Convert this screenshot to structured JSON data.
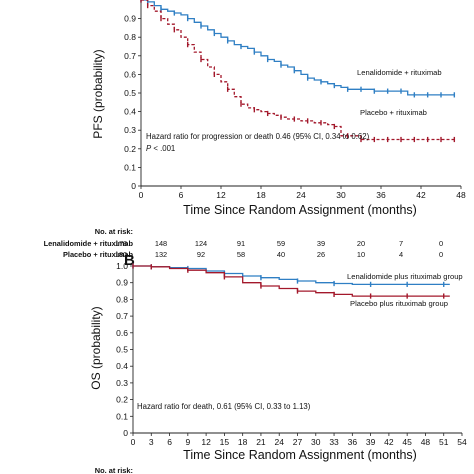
{
  "chart_data": [
    {
      "type": "line",
      "panel": "",
      "title": "",
      "xlabel": "Time Since Random Assignment (months)",
      "ylabel": "PFS (probability)",
      "xlim": [
        0,
        48
      ],
      "ylim": [
        0,
        1.0
      ],
      "x_ticks": [
        "0",
        "6",
        "12",
        "18",
        "24",
        "30",
        "36",
        "42",
        "48"
      ],
      "y_ticks": [
        "0",
        "0.1",
        "0.2",
        "0.3",
        "0.4",
        "0.5",
        "0.6",
        "0.7",
        "0.8",
        "0.9"
      ],
      "annotation_line1": "Hazard ratio for progression or death 0.46 (95% CI, 0.34 to 0.62)",
      "annotation_p_label": "P",
      "annotation_p_value": " < .001",
      "series": [
        {
          "name": "Lenalidomide + rituximab",
          "color": "#2f7fc4",
          "style": "solid",
          "x": [
            0,
            1,
            2,
            3,
            4,
            5,
            6,
            7,
            8,
            9,
            10,
            11,
            12,
            13,
            14,
            15,
            16,
            17,
            18,
            19,
            20,
            21,
            22,
            23,
            24,
            25,
            26,
            27,
            28,
            29,
            30,
            31,
            32,
            33,
            34,
            35,
            36,
            37,
            38,
            39,
            40,
            41,
            42,
            43,
            44,
            45,
            46,
            47
          ],
          "y": [
            1.0,
            0.99,
            0.97,
            0.95,
            0.94,
            0.93,
            0.92,
            0.9,
            0.88,
            0.86,
            0.84,
            0.82,
            0.8,
            0.78,
            0.76,
            0.75,
            0.74,
            0.72,
            0.7,
            0.68,
            0.67,
            0.65,
            0.64,
            0.62,
            0.6,
            0.58,
            0.57,
            0.56,
            0.55,
            0.54,
            0.53,
            0.52,
            0.52,
            0.52,
            0.52,
            0.51,
            0.51,
            0.51,
            0.51,
            0.51,
            0.49,
            0.49,
            0.49,
            0.49,
            0.49,
            0.49,
            0.49,
            0.49
          ]
        },
        {
          "name": "Placebo + rituximab",
          "color": "#a3182b",
          "style": "dashed",
          "x": [
            0,
            1,
            2,
            3,
            4,
            5,
            6,
            7,
            8,
            9,
            10,
            11,
            12,
            13,
            14,
            15,
            16,
            17,
            18,
            19,
            20,
            21,
            22,
            23,
            24,
            25,
            26,
            27,
            28,
            29,
            30,
            31,
            32,
            33,
            34,
            35,
            36,
            37,
            38,
            39,
            40,
            41,
            42,
            43,
            44,
            45,
            46,
            47
          ],
          "y": [
            1.0,
            0.97,
            0.94,
            0.9,
            0.87,
            0.84,
            0.8,
            0.76,
            0.72,
            0.68,
            0.64,
            0.6,
            0.56,
            0.52,
            0.48,
            0.44,
            0.42,
            0.41,
            0.4,
            0.39,
            0.38,
            0.37,
            0.36,
            0.36,
            0.35,
            0.35,
            0.34,
            0.34,
            0.33,
            0.32,
            0.27,
            0.27,
            0.27,
            0.25,
            0.25,
            0.25,
            0.25,
            0.25,
            0.25,
            0.25,
            0.25,
            0.25,
            0.25,
            0.25,
            0.25,
            0.25,
            0.25,
            0.25
          ]
        }
      ],
      "risk_table": {
        "header": "No. at risk:",
        "rows": [
          {
            "label": "Lenalidomide + rituximab",
            "values": [
              "178",
              "148",
              "124",
              "91",
              "59",
              "39",
              "20",
              "7",
              "0"
            ]
          },
          {
            "label": "Placebo + rituximab",
            "values": [
              "180",
              "132",
              "92",
              "58",
              "40",
              "26",
              "10",
              "4",
              "0"
            ]
          }
        ]
      }
    },
    {
      "type": "line",
      "panel": "B",
      "title": "",
      "xlabel": "Time Since Random Assignment (months)",
      "ylabel": "OS (probability)",
      "xlim": [
        0,
        54
      ],
      "ylim": [
        0,
        1.0
      ],
      "x_ticks": [
        "0",
        "3",
        "6",
        "9",
        "12",
        "15",
        "18",
        "21",
        "24",
        "27",
        "30",
        "33",
        "36",
        "39",
        "42",
        "45",
        "48",
        "51",
        "54"
      ],
      "y_ticks": [
        "0",
        "0.1",
        "0.2",
        "0.3",
        "0.4",
        "0.5",
        "0.6",
        "0.7",
        "0.8",
        "0.9",
        "1.0"
      ],
      "annotation_line1": "Hazard ratio for death, 0.61 (95% CI, 0.33 to 1.13)",
      "series": [
        {
          "name": "Lenalidomide plus rituximab group",
          "color": "#2f7fc4",
          "style": "solid",
          "x": [
            0,
            3,
            6,
            9,
            12,
            15,
            18,
            21,
            24,
            27,
            30,
            33,
            36,
            39,
            42,
            45,
            48,
            51,
            52
          ],
          "y": [
            1.0,
            0.995,
            0.99,
            0.985,
            0.97,
            0.955,
            0.94,
            0.93,
            0.92,
            0.91,
            0.9,
            0.895,
            0.89,
            0.89,
            0.89,
            0.89,
            0.89,
            0.89,
            0.89
          ]
        },
        {
          "name": "Placebo plus rituximab group",
          "color": "#a3182b",
          "style": "solid",
          "x": [
            0,
            3,
            6,
            9,
            12,
            15,
            18,
            21,
            24,
            27,
            30,
            33,
            36,
            39,
            42,
            45,
            48,
            51,
            52
          ],
          "y": [
            1.0,
            0.995,
            0.985,
            0.975,
            0.96,
            0.935,
            0.9,
            0.88,
            0.865,
            0.85,
            0.84,
            0.83,
            0.82,
            0.82,
            0.82,
            0.82,
            0.82,
            0.82,
            0.82
          ]
        }
      ],
      "risk_table": {
        "header": "No. at risk:"
      }
    }
  ]
}
